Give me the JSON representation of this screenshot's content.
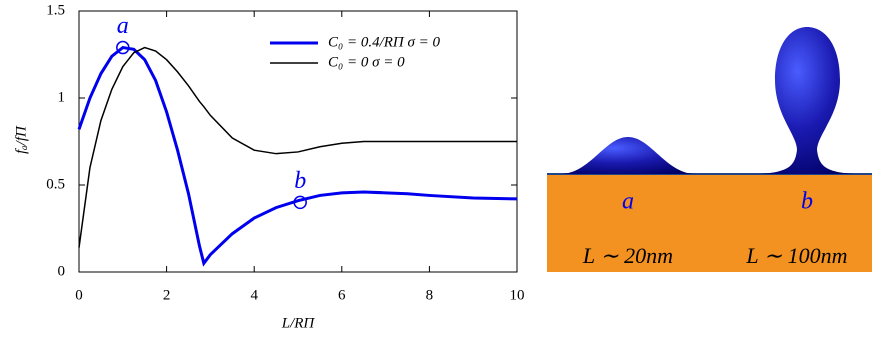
{
  "chart_data": {
    "type": "line",
    "x_label": "L/RΠ",
    "y_label": "fₐ/fΠ",
    "x": [
      0,
      0.25,
      0.5,
      0.75,
      1,
      1.25,
      1.5,
      1.75,
      2,
      2.25,
      2.5,
      2.75,
      2.85,
      3,
      3.5,
      4,
      4.5,
      5,
      5.5,
      6,
      6.5,
      7,
      7.5,
      8,
      9,
      10
    ],
    "series": [
      {
        "name": "C₀ = 0.4/RΠ    σ = 0",
        "color": "#0000ee",
        "values": [
          0.82,
          1.0,
          1.14,
          1.24,
          1.29,
          1.28,
          1.22,
          1.1,
          0.92,
          0.7,
          0.45,
          0.15,
          0.05,
          0.1,
          0.22,
          0.31,
          0.37,
          0.41,
          0.44,
          0.455,
          0.46,
          0.455,
          0.45,
          0.44,
          0.425,
          0.42
        ]
      },
      {
        "name": "C₀ = 0              σ = 0",
        "color": "#000000",
        "values": [
          0.14,
          0.6,
          0.87,
          1.05,
          1.18,
          1.26,
          1.29,
          1.27,
          1.22,
          1.15,
          1.07,
          0.98,
          0.95,
          0.9,
          0.77,
          0.7,
          0.68,
          0.69,
          0.72,
          0.74,
          0.75,
          0.75,
          0.75,
          0.75,
          0.75,
          0.75
        ]
      }
    ],
    "xlim": [
      0,
      10
    ],
    "xticks": [
      0,
      2,
      4,
      6,
      8,
      10
    ],
    "ylim": [
      0,
      1.5
    ],
    "yticks": [
      0,
      0.5,
      1,
      1.5
    ],
    "legend": "upper right",
    "annotations": [
      {
        "text": "a",
        "x": 1,
        "y": 1.29
      },
      {
        "text": "b",
        "x": 5.05,
        "y": 0.4
      }
    ]
  },
  "illustration": {
    "labels": [
      "a",
      "b",
      "L ∼ 20nm",
      "L ∼ 100nm"
    ]
  }
}
